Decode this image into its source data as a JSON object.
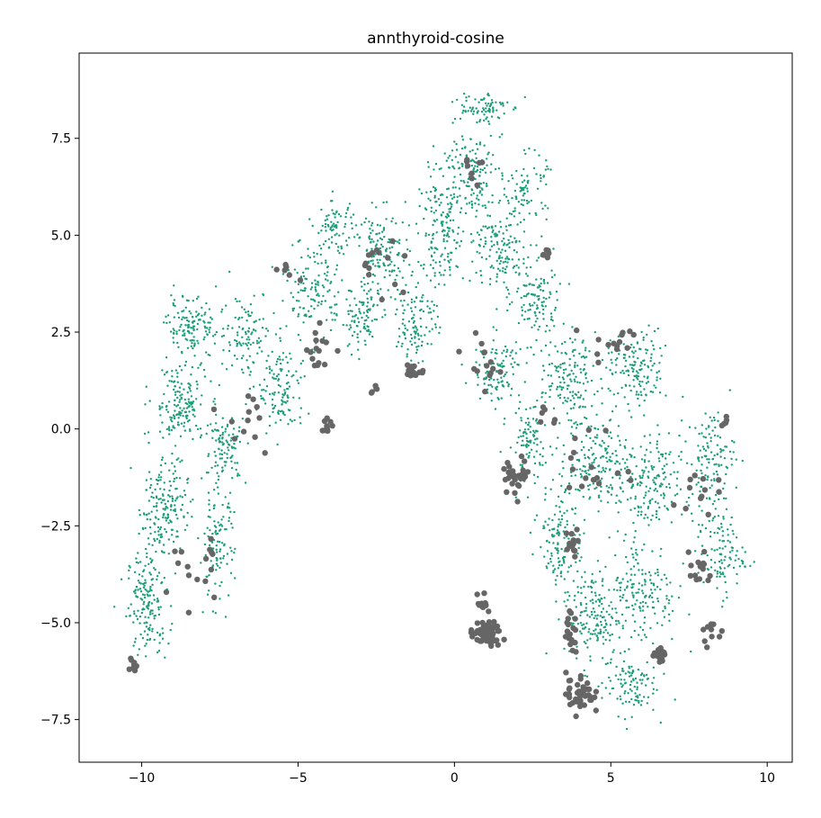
{
  "chart_data": {
    "type": "scatter",
    "title": "annthyroid-cosine",
    "xlabel": "",
    "ylabel": "",
    "xlim": [
      -12.0,
      10.8
    ],
    "ylim": [
      -8.6,
      9.7
    ],
    "xticks": [
      -10,
      -5,
      0,
      5,
      10
    ],
    "xtick_labels": [
      "−10",
      "−5",
      "0",
      "5",
      "10"
    ],
    "yticks": [
      -7.5,
      -5.0,
      -2.5,
      0.0,
      2.5,
      5.0,
      7.5
    ],
    "ytick_labels": [
      "−7.5",
      "−5.0",
      "−2.5",
      "0.0",
      "2.5",
      "5.0",
      "7.5"
    ],
    "grid": false,
    "series": [
      {
        "color": "#1b9e77",
        "marker_size": "small",
        "clusters": [
          {
            "center": [
              -9.8,
              -4.5
            ],
            "spread": [
              0.6,
              1.2
            ],
            "count": 170
          },
          {
            "center": [
              -9.3,
              -2.0
            ],
            "spread": [
              0.7,
              1.1
            ],
            "count": 170
          },
          {
            "center": [
              -8.8,
              0.6
            ],
            "spread": [
              0.8,
              1.0
            ],
            "count": 170
          },
          {
            "center": [
              -8.4,
              2.6
            ],
            "spread": [
              0.7,
              0.7
            ],
            "count": 130
          },
          {
            "center": [
              -7.6,
              -3.0
            ],
            "spread": [
              0.5,
              1.3
            ],
            "count": 110
          },
          {
            "center": [
              -7.3,
              -0.5
            ],
            "spread": [
              0.6,
              0.8
            ],
            "count": 100
          },
          {
            "center": [
              -6.7,
              2.5
            ],
            "spread": [
              0.8,
              1.0
            ],
            "count": 110
          },
          {
            "center": [
              -5.5,
              1.0
            ],
            "spread": [
              0.7,
              1.1
            ],
            "count": 120
          },
          {
            "center": [
              -4.5,
              3.6
            ],
            "spread": [
              0.8,
              1.2
            ],
            "count": 140
          },
          {
            "center": [
              -3.8,
              5.2
            ],
            "spread": [
              0.6,
              0.6
            ],
            "count": 70
          },
          {
            "center": [
              -3.0,
              2.8
            ],
            "spread": [
              0.6,
              0.8
            ],
            "count": 90
          },
          {
            "center": [
              -2.3,
              4.4
            ],
            "spread": [
              0.8,
              1.1
            ],
            "count": 150
          },
          {
            "center": [
              -1.2,
              2.8
            ],
            "spread": [
              0.6,
              1.0
            ],
            "count": 100
          },
          {
            "center": [
              -0.4,
              5.0
            ],
            "spread": [
              0.7,
              1.3
            ],
            "count": 150
          },
          {
            "center": [
              0.5,
              6.6
            ],
            "spread": [
              0.9,
              1.0
            ],
            "count": 160
          },
          {
            "center": [
              0.8,
              8.3
            ],
            "spread": [
              0.8,
              0.4
            ],
            "count": 80
          },
          {
            "center": [
              1.5,
              4.6
            ],
            "spread": [
              0.8,
              1.0
            ],
            "count": 140
          },
          {
            "center": [
              2.3,
              6.2
            ],
            "spread": [
              0.6,
              0.8
            ],
            "count": 80
          },
          {
            "center": [
              2.6,
              3.3
            ],
            "spread": [
              0.7,
              0.9
            ],
            "count": 110
          },
          {
            "center": [
              1.4,
              1.5
            ],
            "spread": [
              0.7,
              0.8
            ],
            "count": 110
          },
          {
            "center": [
              2.4,
              -0.4
            ],
            "spread": [
              0.6,
              0.9
            ],
            "count": 100
          },
          {
            "center": [
              3.6,
              1.3
            ],
            "spread": [
              0.8,
              1.0
            ],
            "count": 150
          },
          {
            "center": [
              4.6,
              -0.8
            ],
            "spread": [
              0.9,
              1.1
            ],
            "count": 170
          },
          {
            "center": [
              3.4,
              -2.8
            ],
            "spread": [
              0.6,
              1.2
            ],
            "count": 130
          },
          {
            "center": [
              5.8,
              1.5
            ],
            "spread": [
              0.9,
              0.9
            ],
            "count": 150
          },
          {
            "center": [
              6.2,
              -1.5
            ],
            "spread": [
              0.9,
              1.2
            ],
            "count": 170
          },
          {
            "center": [
              4.4,
              -4.8
            ],
            "spread": [
              0.8,
              1.2
            ],
            "count": 160
          },
          {
            "center": [
              6.0,
              -4.2
            ],
            "spread": [
              1.0,
              1.3
            ],
            "count": 170
          },
          {
            "center": [
              8.2,
              -0.8
            ],
            "spread": [
              0.7,
              1.2
            ],
            "count": 130
          },
          {
            "center": [
              8.5,
              -3.2
            ],
            "spread": [
              0.7,
              1.0
            ],
            "count": 110
          },
          {
            "center": [
              5.6,
              -6.6
            ],
            "spread": [
              0.8,
              0.7
            ],
            "count": 100
          }
        ]
      },
      {
        "color": "#666666",
        "marker_size": "large",
        "clusters": [
          {
            "center": [
              1.0,
              -5.3
            ],
            "spread": [
              0.45,
              0.3
            ],
            "count": 70
          },
          {
            "center": [
              0.9,
              -4.5
            ],
            "spread": [
              0.15,
              0.2
            ],
            "count": 12
          },
          {
            "center": [
              4.0,
              -6.8
            ],
            "spread": [
              0.4,
              0.5
            ],
            "count": 40
          },
          {
            "center": [
              3.7,
              -5.3
            ],
            "spread": [
              0.2,
              0.5
            ],
            "count": 20
          },
          {
            "center": [
              6.6,
              -5.8
            ],
            "spread": [
              0.2,
              0.2
            ],
            "count": 15
          },
          {
            "center": [
              2.0,
              -1.2
            ],
            "spread": [
              0.4,
              0.4
            ],
            "count": 30
          },
          {
            "center": [
              -1.3,
              1.5
            ],
            "spread": [
              0.3,
              0.15
            ],
            "count": 18
          },
          {
            "center": [
              -4.3,
              2.1
            ],
            "spread": [
              0.4,
              0.6
            ],
            "count": 15
          },
          {
            "center": [
              -4.0,
              0.1
            ],
            "spread": [
              0.25,
              0.15
            ],
            "count": 10
          },
          {
            "center": [
              -10.3,
              -6.1
            ],
            "spread": [
              0.2,
              0.2
            ],
            "count": 10
          },
          {
            "center": [
              3.8,
              -3.0
            ],
            "spread": [
              0.2,
              0.4
            ],
            "count": 14
          },
          {
            "center": [
              7.8,
              -3.6
            ],
            "spread": [
              0.4,
              0.6
            ],
            "count": 14
          },
          {
            "center": [
              8.2,
              -5.2
            ],
            "spread": [
              0.3,
              0.4
            ],
            "count": 10
          },
          {
            "center": [
              2.9,
              4.5
            ],
            "spread": [
              0.1,
              0.15
            ],
            "count": 6
          },
          {
            "center": [
              0.8,
              1.8
            ],
            "spread": [
              0.5,
              0.5
            ],
            "count": 14
          },
          {
            "center": [
              5.2,
              2.3
            ],
            "spread": [
              0.8,
              0.5
            ],
            "count": 14
          },
          {
            "center": [
              7.5,
              -1.6
            ],
            "spread": [
              0.7,
              0.6
            ],
            "count": 12
          },
          {
            "center": [
              -2.2,
              4.2
            ],
            "spread": [
              1.0,
              0.8
            ],
            "count": 14
          },
          {
            "center": [
              -8.5,
              -3.5
            ],
            "spread": [
              0.9,
              1.2
            ],
            "count": 16
          },
          {
            "center": [
              -6.5,
              0.2
            ],
            "spread": [
              0.9,
              1.0
            ],
            "count": 12
          },
          {
            "center": [
              0.4,
              6.8
            ],
            "spread": [
              0.6,
              0.7
            ],
            "count": 8
          },
          {
            "center": [
              4.5,
              -1.0
            ],
            "spread": [
              0.8,
              1.0
            ],
            "count": 16
          },
          {
            "center": [
              3.0,
              0.3
            ],
            "spread": [
              0.4,
              0.3
            ],
            "count": 6
          },
          {
            "center": [
              -2.5,
              1.0
            ],
            "spread": [
              0.2,
              0.1
            ],
            "count": 5
          },
          {
            "center": [
              -5.3,
              4.0
            ],
            "spread": [
              0.5,
              0.5
            ],
            "count": 6
          },
          {
            "center": [
              8.6,
              0.2
            ],
            "spread": [
              0.2,
              0.2
            ],
            "count": 5
          }
        ]
      }
    ]
  }
}
